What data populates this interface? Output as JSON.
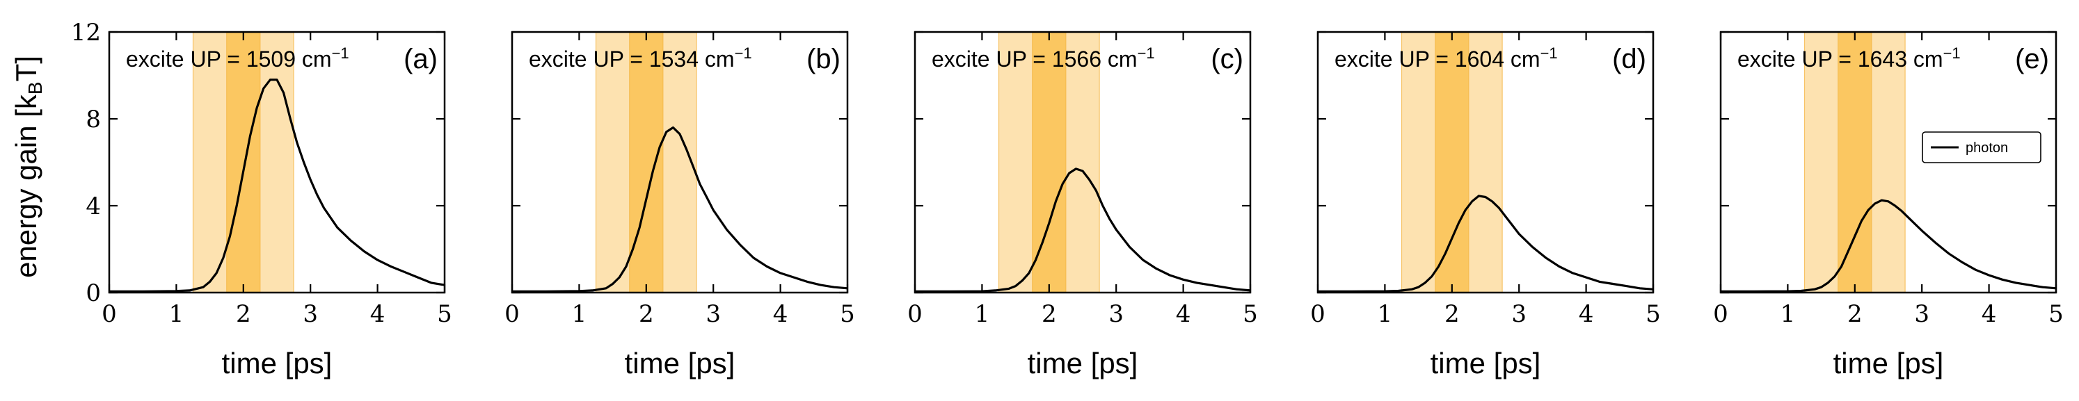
{
  "figure": {
    "ylabel": "energy gain [k",
    "ylabel_sub": "B",
    "ylabel_unit": "T]",
    "legend_label": "photon"
  },
  "chart_data": [
    {
      "type": "line",
      "title": "excite UP = 1509 cm",
      "title_sup": "−1",
      "tag": "(a)",
      "xlabel": "time [ps]",
      "ylabel": "energy gain [kBT]",
      "xlim": [
        0,
        5
      ],
      "ylim": [
        0,
        12
      ],
      "xticks": [
        "0",
        "1",
        "2",
        "3",
        "4",
        "5"
      ],
      "yticks": [
        "0",
        "4",
        "8",
        "12"
      ],
      "bands": [
        {
          "start": 1.25,
          "end": 2.75,
          "shade": "light"
        },
        {
          "start": 1.75,
          "end": 2.25,
          "shade": "dark"
        }
      ],
      "series": [
        {
          "x": [
            0,
            0.5,
            1.0,
            1.2,
            1.4,
            1.5,
            1.6,
            1.7,
            1.8,
            1.9,
            2.0,
            2.1,
            2.2,
            2.3,
            2.4,
            2.5,
            2.6,
            2.7,
            2.8,
            2.9,
            3.0,
            3.1,
            3.2,
            3.4,
            3.6,
            3.8,
            4.0,
            4.2,
            4.4,
            4.6,
            4.8,
            5.0
          ],
          "y": [
            0.05,
            0.05,
            0.07,
            0.1,
            0.25,
            0.5,
            0.9,
            1.6,
            2.6,
            4.0,
            5.6,
            7.2,
            8.5,
            9.4,
            9.8,
            9.8,
            9.2,
            8.0,
            6.9,
            6.0,
            5.2,
            4.5,
            3.9,
            3.0,
            2.4,
            1.9,
            1.5,
            1.2,
            0.95,
            0.7,
            0.45,
            0.35
          ]
        }
      ]
    },
    {
      "type": "line",
      "title": "excite UP = 1534 cm",
      "title_sup": "−1",
      "tag": "(b)",
      "xlabel": "time [ps]",
      "ylabel": "",
      "xlim": [
        0,
        5
      ],
      "ylim": [
        0,
        12
      ],
      "xticks": [
        "0",
        "1",
        "2",
        "3",
        "4",
        "5"
      ],
      "yticks": [],
      "bands": [
        {
          "start": 1.25,
          "end": 2.75,
          "shade": "light"
        },
        {
          "start": 1.75,
          "end": 2.25,
          "shade": "dark"
        }
      ],
      "series": [
        {
          "x": [
            0,
            0.5,
            1.0,
            1.2,
            1.4,
            1.5,
            1.6,
            1.7,
            1.8,
            1.9,
            2.0,
            2.1,
            2.2,
            2.3,
            2.4,
            2.5,
            2.6,
            2.7,
            2.8,
            2.9,
            3.0,
            3.2,
            3.4,
            3.6,
            3.8,
            4.0,
            4.2,
            4.4,
            4.6,
            4.8,
            5.0
          ],
          "y": [
            0.05,
            0.05,
            0.07,
            0.1,
            0.2,
            0.4,
            0.7,
            1.2,
            2.0,
            3.0,
            4.3,
            5.6,
            6.7,
            7.4,
            7.6,
            7.3,
            6.6,
            5.8,
            5.0,
            4.4,
            3.8,
            2.9,
            2.2,
            1.6,
            1.2,
            0.9,
            0.7,
            0.5,
            0.35,
            0.25,
            0.2
          ]
        }
      ]
    },
    {
      "type": "line",
      "title": "excite UP = 1566 cm",
      "title_sup": "−1",
      "tag": "(c)",
      "xlabel": "time [ps]",
      "ylabel": "",
      "xlim": [
        0,
        5
      ],
      "ylim": [
        0,
        12
      ],
      "xticks": [
        "0",
        "1",
        "2",
        "3",
        "4",
        "5"
      ],
      "yticks": [],
      "bands": [
        {
          "start": 1.25,
          "end": 2.75,
          "shade": "light"
        },
        {
          "start": 1.75,
          "end": 2.25,
          "shade": "dark"
        }
      ],
      "series": [
        {
          "x": [
            0,
            0.5,
            1.0,
            1.2,
            1.4,
            1.5,
            1.6,
            1.7,
            1.8,
            1.9,
            2.0,
            2.1,
            2.2,
            2.3,
            2.4,
            2.5,
            2.6,
            2.7,
            2.8,
            2.9,
            3.0,
            3.2,
            3.4,
            3.6,
            3.8,
            4.0,
            4.2,
            4.4,
            4.6,
            4.8,
            5.0
          ],
          "y": [
            0.05,
            0.05,
            0.06,
            0.1,
            0.18,
            0.3,
            0.55,
            0.9,
            1.5,
            2.3,
            3.2,
            4.2,
            5.0,
            5.5,
            5.7,
            5.6,
            5.2,
            4.7,
            4.0,
            3.4,
            2.9,
            2.1,
            1.5,
            1.1,
            0.8,
            0.6,
            0.45,
            0.35,
            0.25,
            0.15,
            0.1
          ]
        }
      ]
    },
    {
      "type": "line",
      "title": "excite UP = 1604 cm",
      "title_sup": "−1",
      "tag": "(d)",
      "xlabel": "time [ps]",
      "ylabel": "",
      "xlim": [
        0,
        5
      ],
      "ylim": [
        0,
        12
      ],
      "xticks": [
        "0",
        "1",
        "2",
        "3",
        "4",
        "5"
      ],
      "yticks": [],
      "bands": [
        {
          "start": 1.25,
          "end": 2.75,
          "shade": "light"
        },
        {
          "start": 1.75,
          "end": 2.25,
          "shade": "dark"
        }
      ],
      "series": [
        {
          "x": [
            0,
            0.5,
            1.0,
            1.2,
            1.4,
            1.5,
            1.6,
            1.7,
            1.8,
            1.9,
            2.0,
            2.1,
            2.2,
            2.3,
            2.4,
            2.5,
            2.6,
            2.7,
            2.8,
            2.9,
            3.0,
            3.2,
            3.4,
            3.6,
            3.8,
            4.0,
            4.2,
            4.4,
            4.6,
            4.8,
            5.0
          ],
          "y": [
            0.05,
            0.05,
            0.06,
            0.08,
            0.15,
            0.25,
            0.45,
            0.75,
            1.2,
            1.8,
            2.5,
            3.2,
            3.8,
            4.2,
            4.45,
            4.4,
            4.2,
            3.9,
            3.5,
            3.1,
            2.7,
            2.1,
            1.6,
            1.2,
            0.9,
            0.7,
            0.5,
            0.4,
            0.3,
            0.2,
            0.15
          ]
        }
      ]
    },
    {
      "type": "line",
      "title": "excite UP = 1643 cm",
      "title_sup": "−1",
      "tag": "(e)",
      "xlabel": "time [ps]",
      "ylabel": "",
      "xlim": [
        0,
        5
      ],
      "ylim": [
        0,
        12
      ],
      "xticks": [
        "0",
        "1",
        "2",
        "3",
        "4",
        "5"
      ],
      "yticks": [],
      "bands": [
        {
          "start": 1.25,
          "end": 2.75,
          "shade": "light"
        },
        {
          "start": 1.75,
          "end": 2.25,
          "shade": "dark"
        }
      ],
      "series": [
        {
          "name": "photon",
          "x": [
            0,
            0.5,
            1.0,
            1.2,
            1.4,
            1.5,
            1.6,
            1.7,
            1.8,
            1.9,
            2.0,
            2.1,
            2.2,
            2.3,
            2.4,
            2.5,
            2.6,
            2.7,
            2.8,
            2.9,
            3.0,
            3.2,
            3.4,
            3.6,
            3.8,
            4.0,
            4.2,
            4.4,
            4.6,
            4.8,
            5.0
          ],
          "y": [
            0.05,
            0.05,
            0.06,
            0.08,
            0.15,
            0.25,
            0.45,
            0.75,
            1.2,
            1.9,
            2.6,
            3.3,
            3.8,
            4.1,
            4.25,
            4.2,
            4.0,
            3.75,
            3.45,
            3.15,
            2.85,
            2.3,
            1.8,
            1.4,
            1.05,
            0.8,
            0.6,
            0.45,
            0.35,
            0.25,
            0.2
          ]
        }
      ],
      "legend": "right"
    }
  ],
  "colors": {
    "band_light": "#fde2b0",
    "band_dark": "#fbc761",
    "band_edge": "#f5b84a",
    "line": "#000000"
  }
}
